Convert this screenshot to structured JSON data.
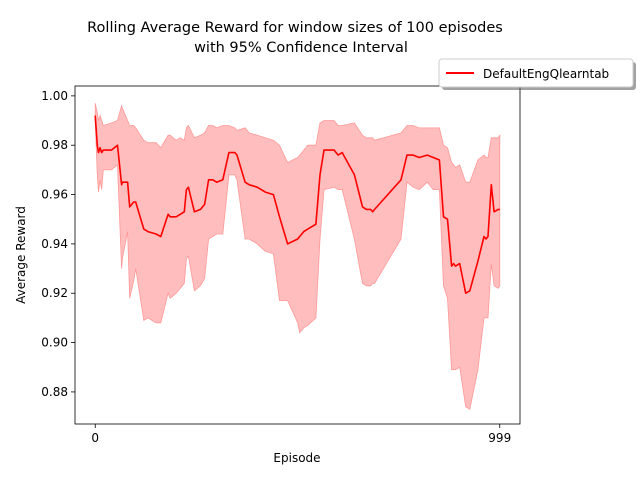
{
  "chart_data": {
    "type": "line",
    "title": [
      "Rolling Average Reward for window sizes of 100 episodes",
      "with 95% Confidence Interval"
    ],
    "xlabel": "Episode",
    "ylabel": "Average Reward",
    "xlim": [
      -50,
      1049
    ],
    "ylim": [
      0.867,
      1.004
    ],
    "xticks": [
      0,
      999
    ],
    "yticks": [
      0.88,
      0.9,
      0.92,
      0.94,
      0.96,
      0.98,
      1.0
    ],
    "ytick_labels": [
      "0.88",
      "0.90",
      "0.92",
      "0.94",
      "0.96",
      "0.98",
      "1.00"
    ],
    "grid": false,
    "legend": {
      "placement": "top-right, outside axes",
      "entries": [
        "DefaultEngQlearntab"
      ]
    },
    "colors": {
      "line": "#ff0000",
      "band": "#ff9999"
    },
    "series": [
      {
        "name": "DefaultEngQlearntab",
        "x": [
          0,
          5,
          8,
          12,
          16,
          20,
          40,
          55,
          65,
          67,
          80,
          85,
          95,
          100,
          120,
          130,
          150,
          162,
          180,
          185,
          200,
          210,
          220,
          225,
          230,
          245,
          260,
          270,
          280,
          290,
          300,
          315,
          330,
          345,
          350,
          370,
          380,
          400,
          420,
          440,
          455,
          475,
          500,
          505,
          510,
          515,
          525,
          545,
          555,
          565,
          590,
          600,
          610,
          640,
          660,
          670,
          680,
          685,
          690,
          755,
          770,
          785,
          800,
          820,
          835,
          850,
          860,
          870,
          880,
          885,
          890,
          900,
          915,
          925,
          945,
          960,
          965,
          970,
          978,
          985,
          995,
          999
        ],
        "y": [
          0.992,
          0.98,
          0.977,
          0.979,
          0.977,
          0.978,
          0.978,
          0.98,
          0.964,
          0.965,
          0.965,
          0.955,
          0.957,
          0.957,
          0.946,
          0.945,
          0.944,
          0.943,
          0.952,
          0.951,
          0.951,
          0.952,
          0.953,
          0.962,
          0.963,
          0.953,
          0.954,
          0.956,
          0.966,
          0.966,
          0.965,
          0.966,
          0.977,
          0.977,
          0.976,
          0.965,
          0.964,
          0.963,
          0.961,
          0.96,
          0.951,
          0.94,
          0.942,
          0.943,
          0.944,
          0.945,
          0.946,
          0.948,
          0.968,
          0.978,
          0.978,
          0.976,
          0.977,
          0.968,
          0.955,
          0.954,
          0.954,
          0.953,
          0.954,
          0.966,
          0.976,
          0.976,
          0.975,
          0.976,
          0.975,
          0.974,
          0.951,
          0.95,
          0.931,
          0.932,
          0.931,
          0.932,
          0.92,
          0.921,
          0.933,
          0.943,
          0.942,
          0.943,
          0.964,
          0.953,
          0.954,
          0.954
        ],
        "lower": [
          0.99,
          0.968,
          0.961,
          0.966,
          0.962,
          0.97,
          0.97,
          0.972,
          0.93,
          0.934,
          0.945,
          0.918,
          0.925,
          0.93,
          0.909,
          0.91,
          0.908,
          0.908,
          0.92,
          0.918,
          0.92,
          0.922,
          0.924,
          0.934,
          0.935,
          0.921,
          0.923,
          0.926,
          0.942,
          0.943,
          0.944,
          0.944,
          0.968,
          0.968,
          0.966,
          0.942,
          0.942,
          0.94,
          0.937,
          0.936,
          0.917,
          0.917,
          0.908,
          0.904,
          0.905,
          0.906,
          0.907,
          0.91,
          0.942,
          0.962,
          0.963,
          0.962,
          0.962,
          0.942,
          0.924,
          0.923,
          0.923,
          0.924,
          0.924,
          0.942,
          0.965,
          0.963,
          0.962,
          0.965,
          0.962,
          0.962,
          0.923,
          0.918,
          0.889,
          0.889,
          0.889,
          0.89,
          0.874,
          0.873,
          0.889,
          0.91,
          0.91,
          0.91,
          0.932,
          0.923,
          0.922,
          0.923
        ],
        "upper": [
          0.997,
          0.993,
          0.99,
          0.992,
          0.99,
          0.988,
          0.989,
          0.99,
          0.996,
          0.995,
          0.99,
          0.988,
          0.988,
          0.987,
          0.982,
          0.981,
          0.981,
          0.979,
          0.984,
          0.984,
          0.982,
          0.983,
          0.982,
          0.987,
          0.988,
          0.983,
          0.984,
          0.985,
          0.988,
          0.988,
          0.987,
          0.988,
          0.988,
          0.987,
          0.986,
          0.987,
          0.985,
          0.984,
          0.983,
          0.982,
          0.98,
          0.973,
          0.975,
          0.976,
          0.977,
          0.978,
          0.98,
          0.98,
          0.989,
          0.99,
          0.99,
          0.988,
          0.988,
          0.989,
          0.984,
          0.983,
          0.983,
          0.983,
          0.982,
          0.985,
          0.988,
          0.988,
          0.987,
          0.987,
          0.987,
          0.987,
          0.98,
          0.979,
          0.973,
          0.972,
          0.971,
          0.972,
          0.965,
          0.965,
          0.974,
          0.976,
          0.975,
          0.975,
          0.983,
          0.983,
          0.983,
          0.984
        ]
      }
    ]
  }
}
